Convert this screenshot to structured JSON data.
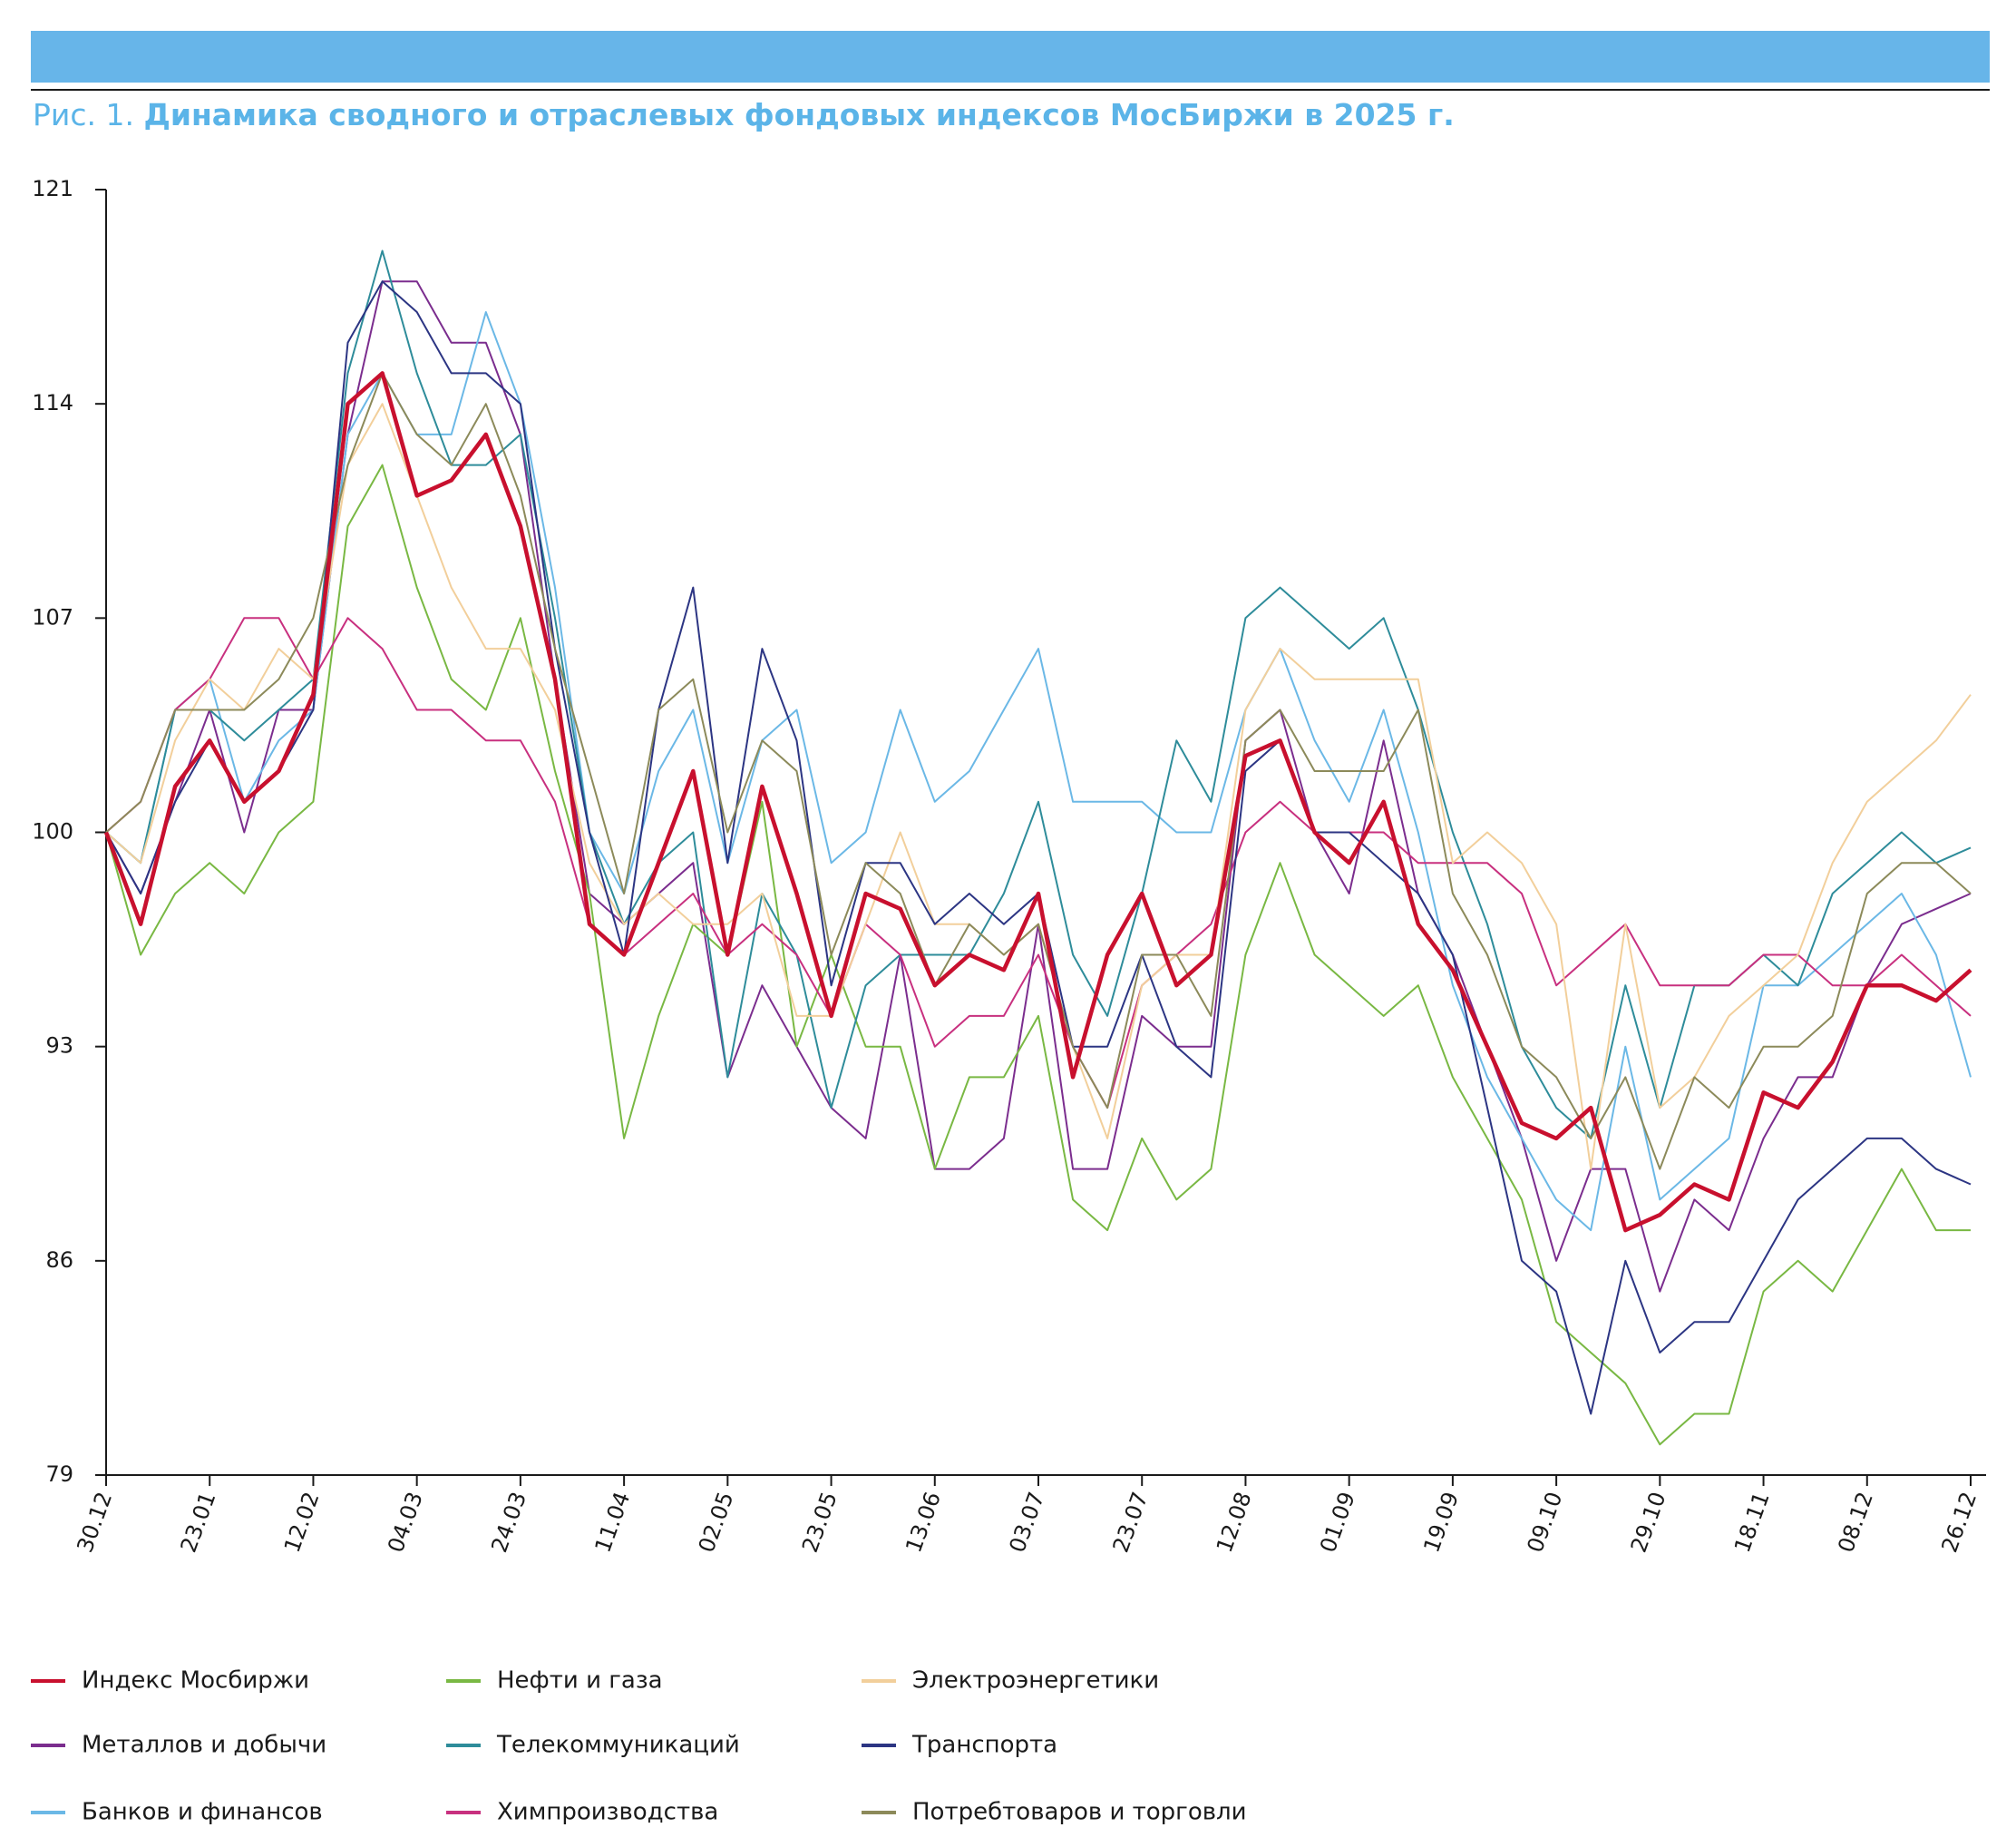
{
  "chart_data": {
    "type": "line",
    "figure_label": "Рис. 1.",
    "title": "Динамика сводного и отраслевых фондовых индексов МосБиржи в 2025 г.",
    "categories": [
      "30.12",
      null,
      null,
      "23.01",
      null,
      null,
      "12.02",
      null,
      null,
      "04.03",
      null,
      null,
      "24.03",
      null,
      null,
      "11.04",
      null,
      null,
      "02.05",
      null,
      null,
      "23.05",
      null,
      null,
      "13.06",
      null,
      null,
      "03.07",
      null,
      null,
      "23.07",
      null,
      null,
      "12.08",
      null,
      null,
      "01.09",
      null,
      null,
      "19.09",
      null,
      null,
      "09.10",
      null,
      null,
      "29.10",
      null,
      null,
      "18.11",
      null,
      null,
      "08.12",
      null,
      null,
      "26.12"
    ],
    "ylim": [
      79,
      121
    ],
    "yticks": [
      79,
      86,
      93,
      100,
      107,
      114,
      121
    ],
    "grid": false,
    "series": [
      {
        "name": "Индекс Мосбиржи",
        "color": "#c8102e",
        "values": [
          100,
          97,
          101.5,
          103,
          101,
          102,
          104.5,
          114,
          115,
          111,
          111.5,
          113,
          110,
          105,
          97,
          96,
          99,
          102,
          96,
          101.5,
          98,
          94,
          98,
          97.5,
          95,
          96,
          95.5,
          98,
          92,
          96,
          98,
          95,
          96,
          102.5,
          103,
          100,
          99,
          101,
          97,
          95.5,
          93,
          90.5,
          90,
          91,
          87,
          87.5,
          88.5,
          88,
          91.5,
          91,
          92.5,
          95,
          95,
          94.5,
          95.5
        ]
      },
      {
        "name": "Металлов и добычи",
        "color": "#7b2d8e",
        "values": [
          100,
          98,
          101,
          104,
          100,
          104,
          104,
          113,
          118,
          118,
          116,
          116,
          113,
          105,
          98,
          97,
          98,
          99,
          92,
          95,
          93,
          91,
          90,
          96,
          89,
          89,
          90,
          97,
          89,
          89,
          94,
          93,
          93,
          103,
          104,
          100,
          98,
          103,
          98,
          96,
          93,
          90,
          86,
          89,
          89,
          85,
          88,
          87,
          90,
          92,
          92,
          95,
          97,
          97.5,
          98
        ]
      },
      {
        "name": "Банков и финансов",
        "color": "#6bb8e6",
        "values": [
          100,
          99,
          104,
          105,
          101,
          103,
          104,
          113,
          115,
          113,
          113,
          117,
          114,
          108,
          100,
          98,
          102,
          104,
          99,
          103,
          104,
          99,
          100,
          104,
          101,
          102,
          104,
          106,
          101,
          101,
          101,
          100,
          100,
          104,
          106,
          103,
          101,
          104,
          100,
          95,
          92,
          90,
          88,
          87,
          93,
          88,
          89,
          90,
          95,
          95,
          96,
          97,
          98,
          96,
          92
        ]
      },
      {
        "name": "Нефти и газа",
        "color": "#79b843",
        "values": [
          100,
          96,
          98,
          99,
          98,
          100,
          101,
          110,
          112,
          108,
          105,
          104,
          107,
          102,
          98,
          90,
          94,
          97,
          96,
          101,
          93,
          96,
          93,
          93,
          89,
          92,
          92,
          94,
          88,
          87,
          90,
          88,
          89,
          96,
          99,
          96,
          95,
          94,
          95,
          92,
          90,
          88,
          84,
          83,
          82,
          80,
          81,
          81,
          85,
          86,
          85,
          87,
          89,
          87,
          87
        ]
      },
      {
        "name": "Телекоммуникаций",
        "color": "#2e8c9a",
        "values": [
          100,
          99,
          104,
          104,
          103,
          104,
          105,
          115,
          119,
          115,
          112,
          112,
          113,
          107,
          100,
          97,
          99,
          100,
          92,
          98,
          96,
          91,
          95,
          96,
          96,
          96,
          98,
          101,
          96,
          94,
          98,
          103,
          101,
          107,
          108,
          107,
          106,
          107,
          104,
          100,
          97,
          93,
          91,
          90,
          95,
          91,
          95,
          95,
          96,
          95,
          98,
          99,
          100,
          99,
          99.5
        ]
      },
      {
        "name": "Химпроизводства",
        "color": "#c8307f",
        "values": [
          100,
          101,
          104,
          105,
          107,
          107,
          105,
          107,
          106,
          104,
          104,
          103,
          103,
          101,
          97,
          96,
          97,
          98,
          96,
          97,
          96,
          94,
          97,
          96,
          93,
          94,
          94,
          96,
          93,
          91,
          95,
          96,
          97,
          100,
          101,
          100,
          100,
          100,
          99,
          99,
          99,
          98,
          95,
          96,
          97,
          95,
          95,
          95,
          96,
          96,
          95,
          95,
          96,
          95,
          94
        ]
      },
      {
        "name": "Электроэнергетики",
        "color": "#f2cf9b",
        "values": [
          100,
          99,
          103,
          105,
          104,
          106,
          105,
          112,
          114,
          111,
          108,
          106,
          106,
          104,
          99,
          97,
          98,
          97,
          97,
          98,
          94,
          94,
          97,
          100,
          97,
          97,
          96,
          97,
          93,
          90,
          95,
          96,
          96,
          104,
          106,
          105,
          105,
          105,
          105,
          99,
          100,
          99,
          97,
          89,
          97,
          91,
          92,
          94,
          95,
          96,
          99,
          101,
          102,
          103,
          104.5
        ]
      },
      {
        "name": "Транспорта",
        "color": "#2c3583",
        "values": [
          100,
          98,
          101,
          103,
          101,
          102,
          104,
          116,
          118,
          117,
          115,
          115,
          114,
          106,
          100,
          96,
          104,
          108,
          99,
          106,
          103,
          95,
          99,
          99,
          97,
          98,
          97,
          98,
          93,
          93,
          96,
          93,
          92,
          102,
          103,
          100,
          100,
          99,
          98,
          96,
          91,
          86,
          85,
          81,
          86,
          83,
          84,
          84,
          86,
          88,
          89,
          90,
          90,
          89,
          88.5
        ]
      },
      {
        "name": "Потребтоваров и торговли",
        "color": "#8c8a5a",
        "values": [
          100,
          101,
          104,
          104,
          104,
          105,
          107,
          112,
          115,
          113,
          112,
          114,
          111,
          106,
          102,
          98,
          104,
          105,
          100,
          103,
          102,
          96,
          99,
          98,
          95,
          97,
          96,
          97,
          93,
          91,
          96,
          96,
          94,
          103,
          104,
          102,
          102,
          102,
          104,
          98,
          96,
          93,
          92,
          90,
          92,
          89,
          92,
          91,
          93,
          93,
          94,
          98,
          99,
          99,
          98
        ]
      }
    ]
  }
}
